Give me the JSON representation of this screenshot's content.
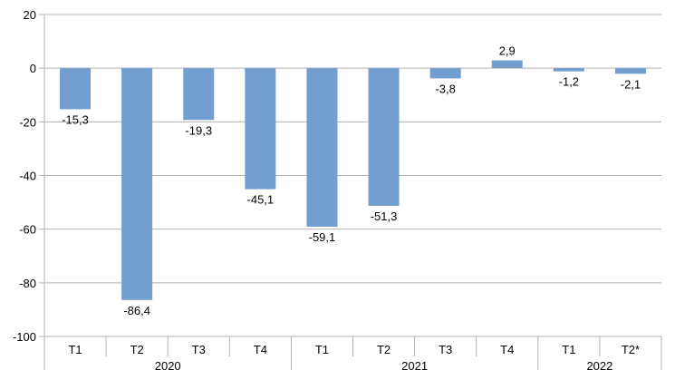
{
  "chart_data": {
    "type": "bar",
    "title": "",
    "xlabel": "",
    "ylabel": "",
    "categories": [
      "T1",
      "T2",
      "T3",
      "T4",
      "T1",
      "T2",
      "T3",
      "T4",
      "T1",
      "T2*"
    ],
    "groups": [
      {
        "label": "2020",
        "count": 4
      },
      {
        "label": "2021",
        "count": 4
      },
      {
        "label": "2022",
        "count": 2
      }
    ],
    "values": [
      -15.3,
      -86.4,
      -19.3,
      -45.1,
      -59.1,
      -51.3,
      -3.8,
      2.9,
      -1.2,
      -2.1
    ],
    "data_labels": [
      "-15,3",
      "-86,4",
      "-19,3",
      "-45,1",
      "-59,1",
      "-51,3",
      "-3,8",
      "2,9",
      "-1,2",
      "-2,1"
    ],
    "ylim": [
      -100,
      20
    ],
    "yticks": [
      20,
      0,
      -20,
      -40,
      -60,
      -80,
      -100
    ],
    "grid": true,
    "legend": "none",
    "bar_color": "#729fcf"
  }
}
